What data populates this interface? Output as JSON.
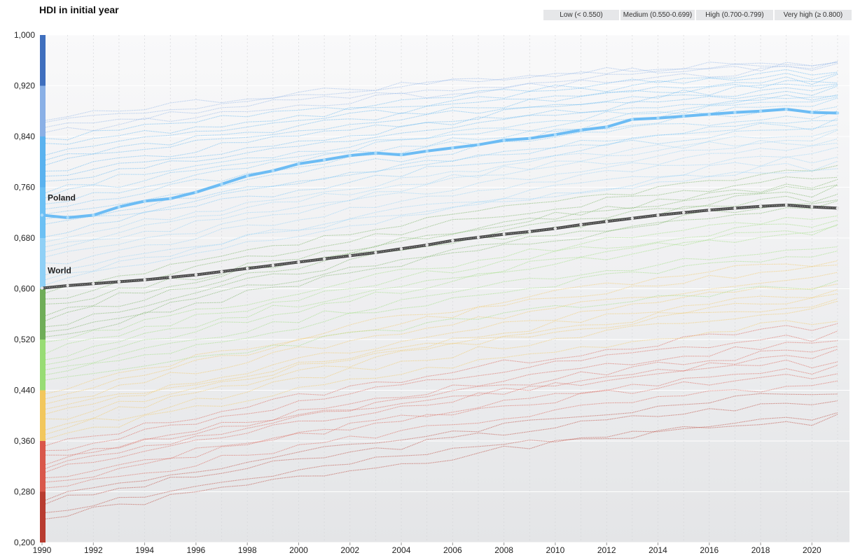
{
  "chart_data": {
    "type": "line",
    "title": "HDI in initial year",
    "xlabel": "",
    "ylabel": "",
    "xlim": [
      1990,
      2021
    ],
    "ylim": [
      0.2,
      1.0
    ],
    "x_tick_labels": [
      "1990",
      "1992",
      "1994",
      "1996",
      "1998",
      "2000",
      "2002",
      "2004",
      "2006",
      "2008",
      "2010",
      "2012",
      "2014",
      "2016",
      "2018",
      "2020"
    ],
    "x_tick_values": [
      1990,
      1992,
      1994,
      1996,
      1998,
      2000,
      2002,
      2004,
      2006,
      2008,
      2010,
      2012,
      2014,
      2016,
      2018,
      2020
    ],
    "y_tick_labels": [
      "1,000",
      "0,920",
      "0,840",
      "0,760",
      "0,680",
      "0,600",
      "0,520",
      "0,440",
      "0,360",
      "0,280",
      "0,200"
    ],
    "y_tick_values": [
      1.0,
      0.92,
      0.84,
      0.76,
      0.68,
      0.6,
      0.52,
      0.44,
      0.36,
      0.28,
      0.2
    ],
    "legend": [
      {
        "label": "Low (< 0.550)",
        "color": "#d45b4d"
      },
      {
        "label": "Medium (0.550-0.699)",
        "color": "#f2c75c"
      },
      {
        "label": "High (0.700-0.799)",
        "color": "#7cc464"
      },
      {
        "label": "Very high (≥ 0.800)",
        "color": "#5ab2ef"
      }
    ],
    "color_scale": [
      {
        "from": 0.2,
        "to": 0.28,
        "color": "#b83c30"
      },
      {
        "from": 0.28,
        "to": 0.36,
        "color": "#d9574a"
      },
      {
        "from": 0.36,
        "to": 0.44,
        "color": "#f2c75c"
      },
      {
        "from": 0.44,
        "to": 0.52,
        "color": "#98dc74"
      },
      {
        "from": 0.52,
        "to": 0.6,
        "color": "#6fad58"
      },
      {
        "from": 0.6,
        "to": 0.68,
        "color": "#8fd0f6"
      },
      {
        "from": 0.68,
        "to": 0.76,
        "color": "#6cc0f4"
      },
      {
        "from": 0.76,
        "to": 0.84,
        "color": "#5ab2ef"
      },
      {
        "from": 0.84,
        "to": 0.92,
        "color": "#8ab0e6"
      },
      {
        "from": 0.92,
        "to": 1.0,
        "color": "#3f6fbe"
      }
    ],
    "highlight_series": [
      {
        "name": "Poland",
        "color": "#6cbcf4",
        "x": [
          1990,
          1991,
          1992,
          1993,
          1994,
          1995,
          1996,
          1997,
          1998,
          1999,
          2000,
          2001,
          2002,
          2003,
          2004,
          2005,
          2006,
          2007,
          2008,
          2009,
          2010,
          2011,
          2012,
          2013,
          2014,
          2015,
          2016,
          2017,
          2018,
          2019,
          2020,
          2021
        ],
        "values": [
          0.716,
          0.712,
          0.716,
          0.729,
          0.738,
          0.742,
          0.752,
          0.765,
          0.778,
          0.786,
          0.797,
          0.803,
          0.81,
          0.814,
          0.811,
          0.817,
          0.822,
          0.827,
          0.834,
          0.837,
          0.843,
          0.85,
          0.855,
          0.867,
          0.869,
          0.872,
          0.875,
          0.878,
          0.88,
          0.883,
          0.878,
          0.877
        ]
      },
      {
        "name": "World",
        "color": "#444444",
        "x": [
          1990,
          1991,
          1992,
          1993,
          1994,
          1995,
          1996,
          1997,
          1998,
          1999,
          2000,
          2001,
          2002,
          2003,
          2004,
          2005,
          2006,
          2007,
          2008,
          2009,
          2010,
          2011,
          2012,
          2013,
          2014,
          2015,
          2016,
          2017,
          2018,
          2019,
          2020,
          2021
        ],
        "values": [
          0.601,
          0.605,
          0.608,
          0.611,
          0.614,
          0.618,
          0.622,
          0.627,
          0.632,
          0.637,
          0.642,
          0.647,
          0.652,
          0.657,
          0.663,
          0.669,
          0.676,
          0.681,
          0.686,
          0.69,
          0.695,
          0.701,
          0.706,
          0.711,
          0.716,
          0.72,
          0.724,
          0.727,
          0.73,
          0.732,
          0.729,
          0.727
        ]
      }
    ],
    "background_series_note": "Many faint dotted country series, colored by their initial-year HDI band",
    "background_series": [
      {
        "start": 0.236,
        "end": 0.398
      },
      {
        "start": 0.248,
        "end": 0.404
      },
      {
        "start": 0.262,
        "end": 0.426
      },
      {
        "start": 0.27,
        "end": 0.44
      },
      {
        "start": 0.281,
        "end": 0.452
      },
      {
        "start": 0.292,
        "end": 0.48
      },
      {
        "start": 0.301,
        "end": 0.47
      },
      {
        "start": 0.31,
        "end": 0.5
      },
      {
        "start": 0.318,
        "end": 0.508
      },
      {
        "start": 0.326,
        "end": 0.52
      },
      {
        "start": 0.333,
        "end": 0.49
      },
      {
        "start": 0.342,
        "end": 0.53
      },
      {
        "start": 0.35,
        "end": 0.545
      },
      {
        "start": 0.362,
        "end": 0.552
      },
      {
        "start": 0.372,
        "end": 0.575
      },
      {
        "start": 0.381,
        "end": 0.59
      },
      {
        "start": 0.39,
        "end": 0.6
      },
      {
        "start": 0.398,
        "end": 0.612
      },
      {
        "start": 0.408,
        "end": 0.58
      },
      {
        "start": 0.418,
        "end": 0.625
      },
      {
        "start": 0.428,
        "end": 0.64
      },
      {
        "start": 0.438,
        "end": 0.65
      },
      {
        "start": 0.45,
        "end": 0.61
      },
      {
        "start": 0.46,
        "end": 0.66
      },
      {
        "start": 0.47,
        "end": 0.67
      },
      {
        "start": 0.48,
        "end": 0.695
      },
      {
        "start": 0.49,
        "end": 0.7
      },
      {
        "start": 0.5,
        "end": 0.71
      },
      {
        "start": 0.51,
        "end": 0.72
      },
      {
        "start": 0.52,
        "end": 0.735
      },
      {
        "start": 0.53,
        "end": 0.74
      },
      {
        "start": 0.54,
        "end": 0.752
      },
      {
        "start": 0.55,
        "end": 0.758
      },
      {
        "start": 0.56,
        "end": 0.77
      },
      {
        "start": 0.57,
        "end": 0.765
      },
      {
        "start": 0.58,
        "end": 0.78
      },
      {
        "start": 0.59,
        "end": 0.79
      },
      {
        "start": 0.605,
        "end": 0.8
      },
      {
        "start": 0.615,
        "end": 0.81
      },
      {
        "start": 0.625,
        "end": 0.795
      },
      {
        "start": 0.635,
        "end": 0.82
      },
      {
        "start": 0.645,
        "end": 0.83
      },
      {
        "start": 0.655,
        "end": 0.84
      },
      {
        "start": 0.665,
        "end": 0.845
      },
      {
        "start": 0.675,
        "end": 0.85
      },
      {
        "start": 0.685,
        "end": 0.86
      },
      {
        "start": 0.695,
        "end": 0.87
      },
      {
        "start": 0.705,
        "end": 0.865
      },
      {
        "start": 0.715,
        "end": 0.88
      },
      {
        "start": 0.725,
        "end": 0.89
      },
      {
        "start": 0.735,
        "end": 0.895
      },
      {
        "start": 0.745,
        "end": 0.9
      },
      {
        "start": 0.755,
        "end": 0.905
      },
      {
        "start": 0.765,
        "end": 0.91
      },
      {
        "start": 0.775,
        "end": 0.915
      },
      {
        "start": 0.785,
        "end": 0.92
      },
      {
        "start": 0.795,
        "end": 0.925
      },
      {
        "start": 0.805,
        "end": 0.93
      },
      {
        "start": 0.815,
        "end": 0.935
      },
      {
        "start": 0.825,
        "end": 0.94
      },
      {
        "start": 0.835,
        "end": 0.945
      },
      {
        "start": 0.845,
        "end": 0.95
      },
      {
        "start": 0.855,
        "end": 0.955
      },
      {
        "start": 0.865,
        "end": 0.96
      },
      {
        "start": 0.87,
        "end": 0.962
      }
    ]
  }
}
